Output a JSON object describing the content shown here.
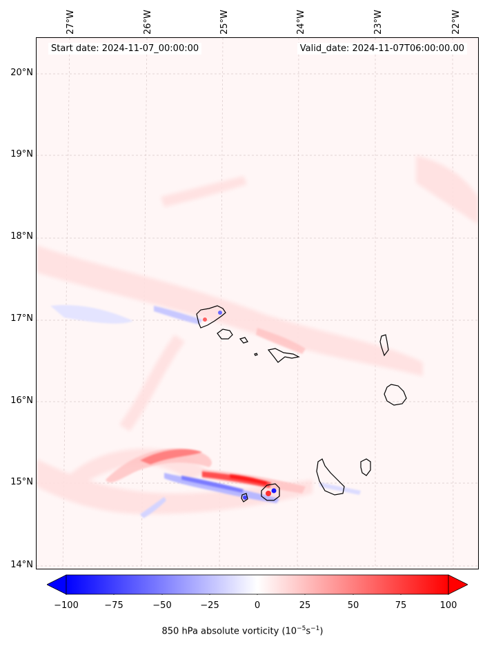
{
  "header": {
    "start_date": "Start date: 2024-11-07_00:00:00",
    "valid_date": "Valid_date: 2024-11-07T06:00:00.00"
  },
  "map": {
    "longitude_labels": [
      "27°W",
      "26°W",
      "25°W",
      "24°W",
      "23°W",
      "22°W"
    ],
    "latitude_labels": [
      "20°N",
      "19°N",
      "18°N",
      "17°N",
      "16°N",
      "15°N",
      "14°N"
    ],
    "background_color": "#fff6f6",
    "coastline_color": "#000000"
  },
  "colorbar": {
    "ticks": [
      "−100",
      "−75",
      "−50",
      "−25",
      "0",
      "25",
      "50",
      "75",
      "100"
    ],
    "min": -100,
    "max": 100,
    "low_color": "#0000ff",
    "mid_color": "#ffffff",
    "high_color": "#ff0000",
    "label_prefix": "850 hPa absolute vorticity (10",
    "label_exp1": "−5",
    "label_mid": "s",
    "label_exp2": "−1",
    "label_suffix": ")"
  }
}
